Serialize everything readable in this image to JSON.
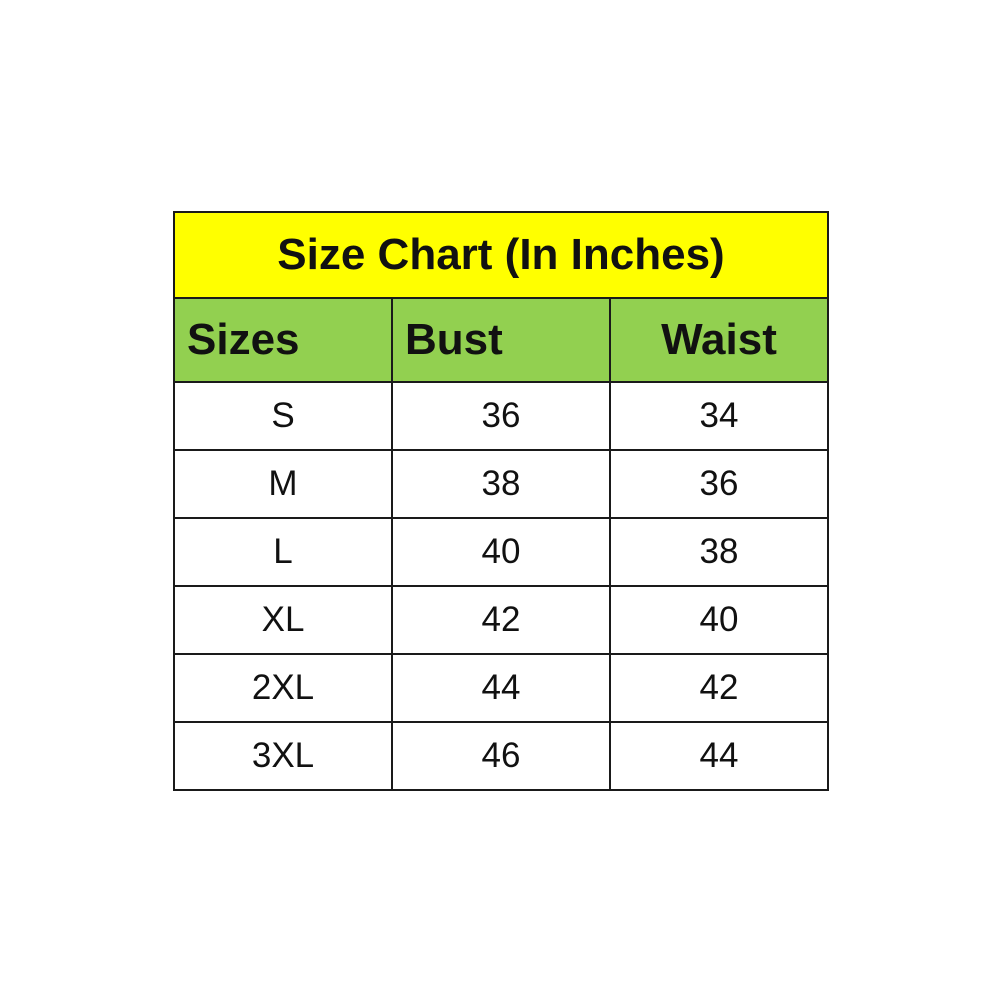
{
  "title": "Size Chart (In Inches)",
  "headers": [
    "Sizes",
    "Bust",
    "Waist"
  ],
  "rows": [
    [
      "S",
      "36",
      "34"
    ],
    [
      "M",
      "38",
      "36"
    ],
    [
      "L",
      "40",
      "38"
    ],
    [
      "XL",
      "42",
      "40"
    ],
    [
      "2XL",
      "44",
      "42"
    ],
    [
      "3XL",
      "46",
      "44"
    ]
  ],
  "colors": {
    "title_bg": "#ffff00",
    "header_bg": "#92d050"
  }
}
